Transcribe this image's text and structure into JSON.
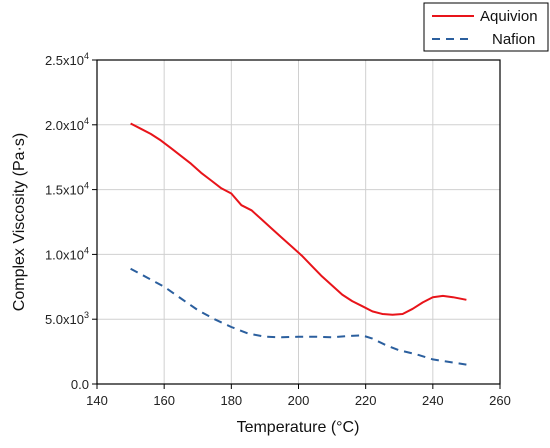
{
  "chart_data": {
    "type": "line",
    "xlabel": "Temperature (°C)",
    "ylabel": "Complex Viscosity (Pa·s)",
    "xlim": [
      140,
      260
    ],
    "ylim": [
      0,
      25000
    ],
    "x_ticks": [
      140,
      160,
      180,
      200,
      220,
      240,
      260
    ],
    "x_tick_labels": [
      "140",
      "160",
      "180",
      "200",
      "220",
      "240",
      "260"
    ],
    "y_ticks": [
      0,
      5000,
      10000,
      15000,
      20000,
      25000
    ],
    "y_tick_labels": [
      {
        "mantissa": "0.0",
        "exp": ""
      },
      {
        "mantissa": "5.0x10",
        "exp": "3"
      },
      {
        "mantissa": "1.0x10",
        "exp": "4"
      },
      {
        "mantissa": "1.5x10",
        "exp": "4"
      },
      {
        "mantissa": "2.0x10",
        "exp": "4"
      },
      {
        "mantissa": "2.5x10",
        "exp": "4"
      }
    ],
    "grid": true,
    "legend_position": "top-right outside",
    "series": [
      {
        "name": "Aquivion",
        "color": "#e8141a",
        "style": "solid",
        "points": [
          [
            150,
            20100
          ],
          [
            153,
            19700
          ],
          [
            156,
            19300
          ],
          [
            159,
            18800
          ],
          [
            162,
            18200
          ],
          [
            165,
            17600
          ],
          [
            168,
            17000
          ],
          [
            171,
            16300
          ],
          [
            174,
            15700
          ],
          [
            177,
            15100
          ],
          [
            180,
            14700
          ],
          [
            183,
            13800
          ],
          [
            186,
            13400
          ],
          [
            189,
            12700
          ],
          [
            192,
            12000
          ],
          [
            195,
            11300
          ],
          [
            198,
            10600
          ],
          [
            201,
            9900
          ],
          [
            204,
            9100
          ],
          [
            207,
            8300
          ],
          [
            210,
            7600
          ],
          [
            213,
            6900
          ],
          [
            216,
            6400
          ],
          [
            219,
            6000
          ],
          [
            222,
            5600
          ],
          [
            225,
            5400
          ],
          [
            228,
            5350
          ],
          [
            231,
            5400
          ],
          [
            234,
            5800
          ],
          [
            237,
            6300
          ],
          [
            240,
            6700
          ],
          [
            243,
            6800
          ],
          [
            246,
            6700
          ],
          [
            250,
            6500
          ]
        ]
      },
      {
        "name": "Nafion",
        "color": "#2b5f9e",
        "style": "dashed",
        "points": [
          [
            150,
            8900
          ],
          [
            155,
            8200
          ],
          [
            160,
            7500
          ],
          [
            165,
            6600
          ],
          [
            170,
            5700
          ],
          [
            175,
            5000
          ],
          [
            180,
            4400
          ],
          [
            185,
            3900
          ],
          [
            190,
            3650
          ],
          [
            195,
            3600
          ],
          [
            200,
            3650
          ],
          [
            205,
            3650
          ],
          [
            210,
            3600
          ],
          [
            215,
            3700
          ],
          [
            219,
            3750
          ],
          [
            222,
            3500
          ],
          [
            226,
            3000
          ],
          [
            230,
            2600
          ],
          [
            235,
            2300
          ],
          [
            240,
            1900
          ],
          [
            245,
            1700
          ],
          [
            250,
            1500
          ]
        ]
      }
    ]
  }
}
